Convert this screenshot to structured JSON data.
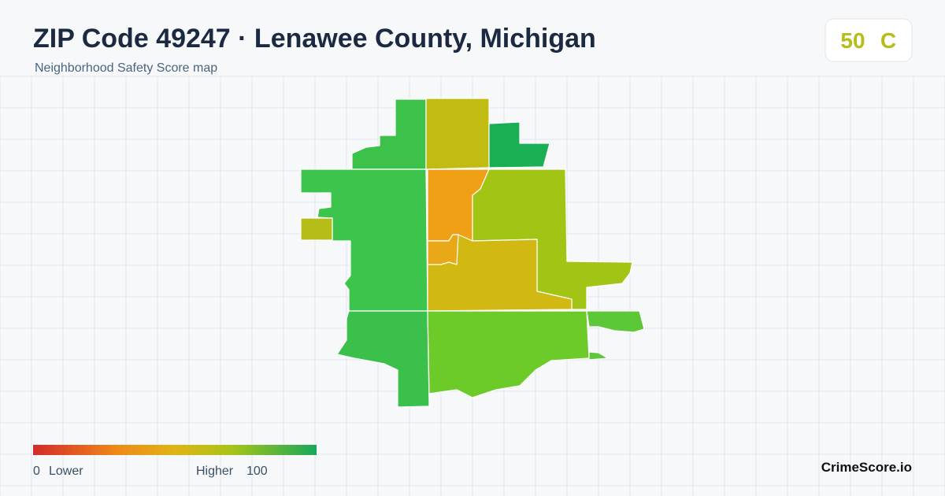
{
  "header": {
    "title": "ZIP Code 49247 · Lenawee County, Michigan",
    "subtitle": "Neighborhood Safety Score map"
  },
  "score": {
    "value": 50,
    "grade": "C"
  },
  "legend": {
    "min": 0,
    "min_label": "Lower",
    "max_label": "Higher",
    "max": 100
  },
  "brand": "CrimeScore.io"
}
